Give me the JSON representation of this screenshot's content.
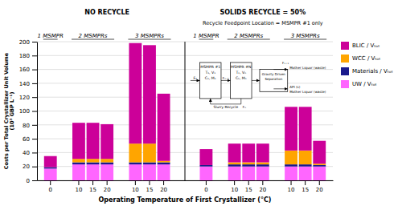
{
  "chart_data": {
    "type": "bar",
    "stacked": true,
    "panels": [
      {
        "title": "NO RECYCLE",
        "groups": [
          {
            "label": "1 MSMPR",
            "size": 1
          },
          {
            "label": "2 MSMPRs",
            "size": 3
          },
          {
            "label": "3 MSMPRs",
            "size": 3
          }
        ]
      },
      {
        "title": "SOLIDS RECYCLE = 50%",
        "subtitle": "Recycle Feedpoint Location = MSMPR #1 only",
        "groups": [
          {
            "label": "1 MSMPR",
            "size": 1
          },
          {
            "label": "2 MSMPRs",
            "size": 3
          },
          {
            "label": "3 MSMPRs",
            "size": 3
          }
        ]
      }
    ],
    "x_label": "Operating Temperature of First Crystallizer (°C)",
    "y_label": "Costs per Total Crystallizer Unit Volume\n(10³ GBP L⁻¹)",
    "categories": [
      "0",
      "10",
      "15",
      "20",
      "10",
      "15",
      "20",
      "0",
      "10",
      "15",
      "20",
      "10",
      "15",
      "20"
    ],
    "series": [
      {
        "name": "UW / Vₜₒₜ",
        "color": "#FF66FF",
        "values": [
          17,
          23,
          23,
          23,
          23,
          23,
          23,
          20,
          20,
          20,
          20,
          20,
          20,
          20
        ]
      },
      {
        "name": "Materials / Vₜₒₜ",
        "color": "#1a1a8c",
        "values": [
          2,
          3,
          3,
          3,
          3,
          3,
          3,
          2,
          3,
          3,
          3,
          3,
          3,
          2
        ]
      },
      {
        "name": "WCC / Vₜₒₜ",
        "color": "#FFA500",
        "values": [
          0,
          5,
          5,
          5,
          27,
          27,
          2,
          0,
          3,
          3,
          3,
          20,
          20,
          2
        ]
      },
      {
        "name": "BLIC / Vₜₒₜ",
        "color": "#CC0099",
        "values": [
          16,
          52,
          52,
          50,
          145,
          142,
          97,
          23,
          27,
          27,
          27,
          63,
          63,
          33
        ]
      }
    ],
    "ylim": [
      0,
      200
    ],
    "yticks": [
      0,
      20,
      40,
      60,
      80,
      100,
      120,
      140,
      160,
      180,
      200
    ],
    "grid": true,
    "legend": "right",
    "annotations": [
      "MSMPR #1",
      "T₁, V₁",
      "C₁, M₁",
      "MSMPR #N",
      "Tₙ, Vₙ",
      "Cₙ, Mₙ",
      "Gravity Driven",
      "Separation",
      "F₁",
      "Fₙ₋₁",
      "Mother Liquor (waste)",
      "Fₙ₊₁",
      "API (s)",
      "Mother Liquor (waste)",
      "Slurry Recycle",
      "Fₙ"
    ]
  }
}
